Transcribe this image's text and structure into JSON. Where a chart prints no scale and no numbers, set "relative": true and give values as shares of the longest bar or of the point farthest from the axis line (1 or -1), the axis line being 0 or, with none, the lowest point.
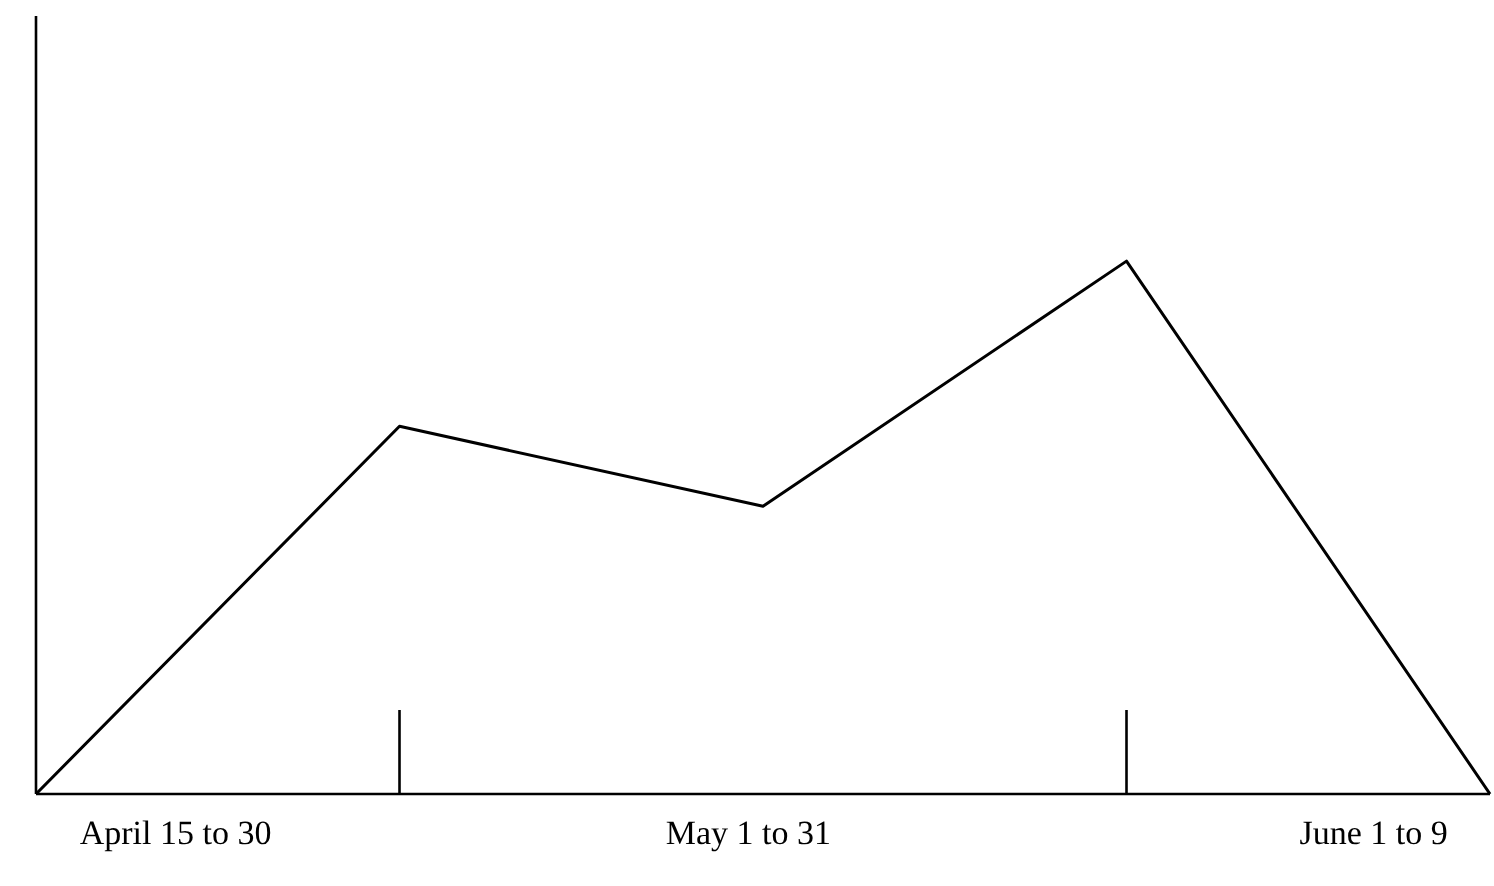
{
  "chart_data": {
    "type": "line",
    "relative": true,
    "categories": [
      null,
      null,
      null,
      null,
      null
    ],
    "series": [
      {
        "color": "#000000",
        "values": [
          0,
          0.69,
          0.54,
          1,
          0
        ]
      }
    ],
    "annotations": [
      "April 15 to 30",
      "May 1 to 31",
      "June 1 to 9"
    ],
    "grid": false,
    "legend": false,
    "marker": "none",
    "line_style": "solid"
  }
}
